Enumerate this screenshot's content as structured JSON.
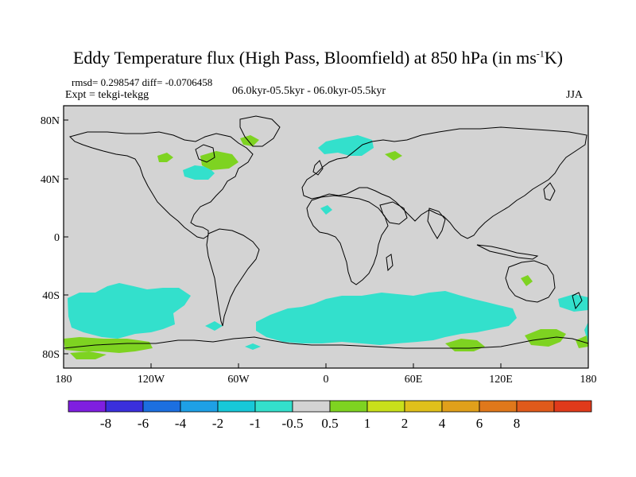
{
  "title": {
    "main": "Eddy Temperature flux (High Pass, Bloomfield) at 850 hPa (in ms",
    "sup": "-1",
    "end": "K)"
  },
  "stats": "rmsd= 0.298547 diff= -0.0706458",
  "expt": "Expt = tekgi-tekgg",
  "period": "06.0kyr-05.5kyr - 06.0kyr-05.5kyr",
  "season": "JJA",
  "colors": {
    "background_neutral": "#d3d3d3",
    "land_outline": "#000000",
    "field_neg_small": "#33e0cc",
    "field_pos_small": "#7ed321"
  },
  "map": {
    "xticks": [
      "180",
      "120W",
      "60W",
      "0",
      "60E",
      "120E",
      "180"
    ],
    "yticks": [
      "80N",
      "40N",
      "0",
      "40S",
      "80S"
    ]
  },
  "legend": {
    "colors": [
      "#7f1fe0",
      "#3a2fdc",
      "#1c6fe0",
      "#1ea0e6",
      "#17c8d8",
      "#33e0cc",
      "#d3d3d3",
      "#7ed321",
      "#c9e01b",
      "#e0c01b",
      "#e0a01b",
      "#e0781b",
      "#e05a1b",
      "#e03a1b"
    ],
    "labels": [
      "-8",
      "-6",
      "-4",
      "-2",
      "-1",
      "-0.5",
      "0.5",
      "1",
      "2",
      "4",
      "6",
      "8"
    ]
  }
}
